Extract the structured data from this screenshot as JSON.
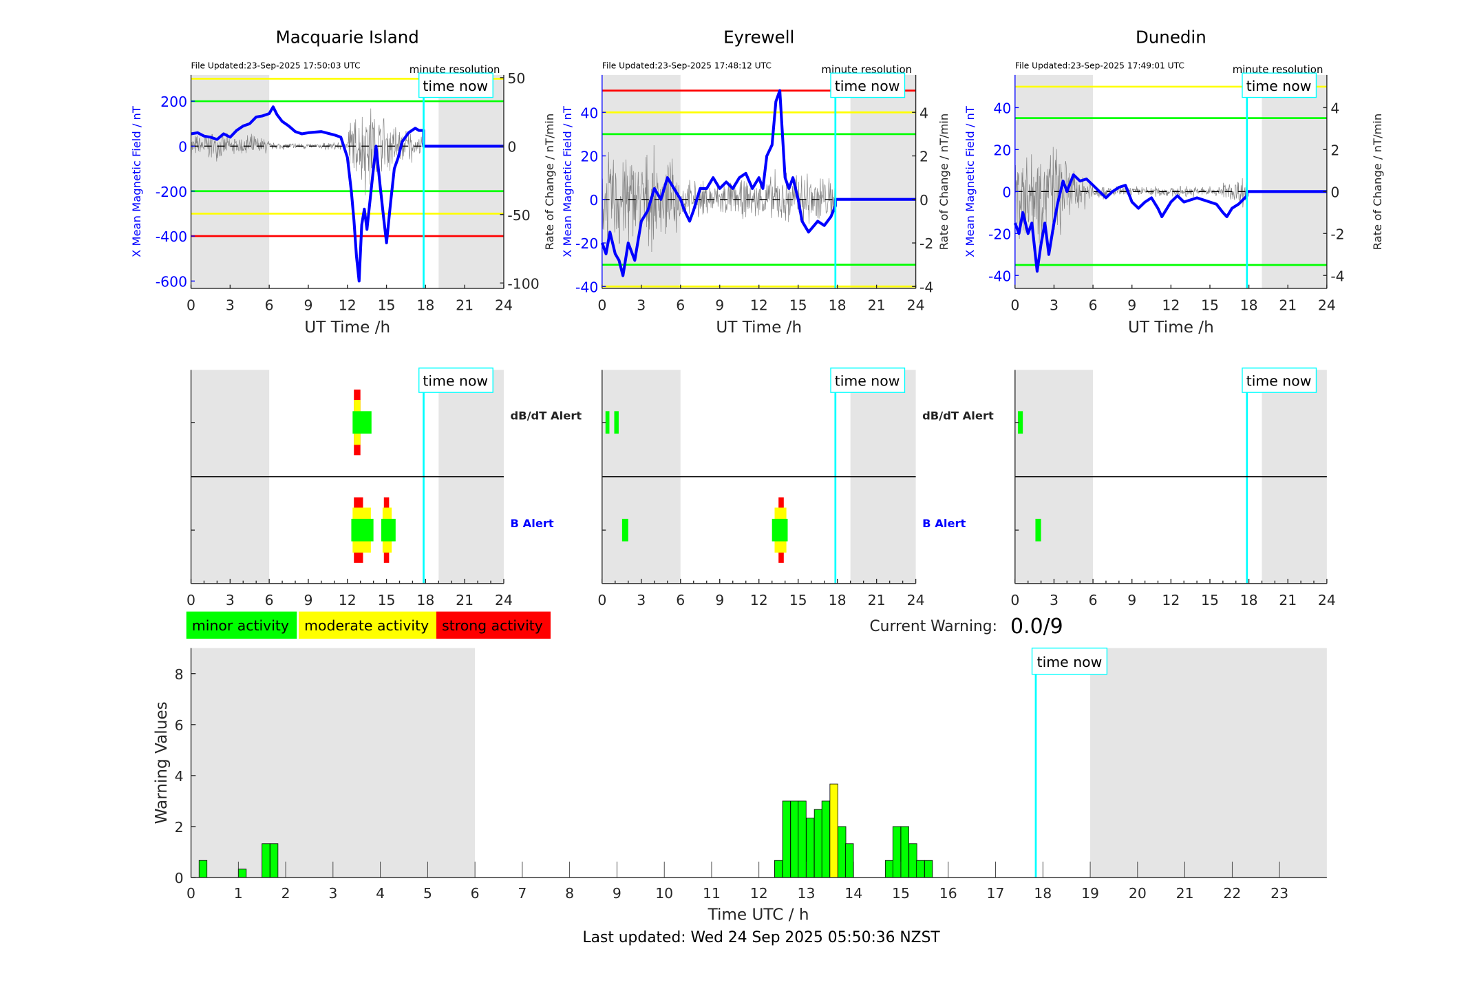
{
  "time_now_h": 17.85,
  "night_spans": [
    [
      0,
      6
    ],
    [
      19,
      24
    ]
  ],
  "colors": {
    "field": "#0000ff",
    "rate": "#808080",
    "time_now": "#00ffff",
    "night": "#e5e5e5",
    "minor": "#00ff00",
    "moderate": "#ffff00",
    "strong": "#ff0000",
    "b_alert_label": "#0000ff"
  },
  "stations": [
    {
      "name": "Macquarie Island",
      "file_updated": "File Updated:23-Sep-2025 17:50:03 UTC",
      "resolution": "minute resolution",
      "time_now_label": "time now",
      "left_label": "X Mean Magnetic Field / nT",
      "right_label": "Rate of Change / nT/min",
      "x_label": "UT Time /h",
      "x_ticks": [
        0,
        3,
        6,
        9,
        12,
        15,
        18,
        21,
        24
      ],
      "left_ticks": [
        -600,
        -400,
        -200,
        0,
        200
      ],
      "left_ylim": [
        -633,
        317
      ],
      "right_ticks": [
        -100,
        -50,
        0,
        50
      ],
      "right_ylim": [
        -104,
        52
      ],
      "thresholds": [
        {
          "value": 300,
          "color": "#ffff00"
        },
        {
          "value": 200,
          "color": "#00ff00"
        },
        {
          "value": -200,
          "color": "#00ff00"
        },
        {
          "value": -300,
          "color": "#ffff00"
        },
        {
          "value": -400,
          "color": "#ff0000"
        }
      ],
      "field": [
        [
          0,
          55
        ],
        [
          0.5,
          60
        ],
        [
          1,
          45
        ],
        [
          1.5,
          40
        ],
        [
          2,
          30
        ],
        [
          2.5,
          55
        ],
        [
          3,
          40
        ],
        [
          3.5,
          70
        ],
        [
          4,
          90
        ],
        [
          4.5,
          100
        ],
        [
          5,
          130
        ],
        [
          5.5,
          135
        ],
        [
          6,
          145
        ],
        [
          6.3,
          175
        ],
        [
          6.6,
          140
        ],
        [
          7,
          110
        ],
        [
          7.5,
          90
        ],
        [
          8,
          65
        ],
        [
          8.5,
          55
        ],
        [
          9,
          60
        ],
        [
          10,
          65
        ],
        [
          11,
          50
        ],
        [
          11.5,
          40
        ],
        [
          12,
          -50
        ],
        [
          12.3,
          -200
        ],
        [
          12.5,
          -330
        ],
        [
          12.7,
          -490
        ],
        [
          12.9,
          -600
        ],
        [
          13.1,
          -350
        ],
        [
          13.3,
          -280
        ],
        [
          13.5,
          -370
        ],
        [
          13.7,
          -260
        ],
        [
          14,
          -100
        ],
        [
          14.2,
          0
        ],
        [
          14.5,
          -170
        ],
        [
          14.8,
          -330
        ],
        [
          15,
          -430
        ],
        [
          15.3,
          -260
        ],
        [
          15.6,
          -100
        ],
        [
          15.9,
          -50
        ],
        [
          16.2,
          20
        ],
        [
          16.7,
          60
        ],
        [
          17.2,
          80
        ],
        [
          17.5,
          70
        ],
        [
          17.85,
          70
        ],
        [
          17.85,
          0
        ],
        [
          24,
          0
        ]
      ],
      "rate_envelope": [
        10,
        12,
        10,
        8,
        10,
        8,
        3,
        3,
        3,
        2,
        3,
        4,
        25,
        40,
        28,
        22,
        15,
        8
      ],
      "alert_labels": {
        "dbdt": "dB/dT Alert",
        "b": "B Alert"
      },
      "alerts": {
        "dbdt": [
          {
            "start": 12.5,
            "end": 13.0,
            "level": 3
          },
          {
            "start": 12.5,
            "end": 13.0,
            "level": 2
          },
          {
            "start": 12.4,
            "end": 13.85,
            "level": 1
          }
        ],
        "b": [
          {
            "start": 12.5,
            "end": 13.2,
            "level": 3
          },
          {
            "start": 12.4,
            "end": 13.8,
            "level": 2
          },
          {
            "start": 12.3,
            "end": 14.0,
            "level": 1
          },
          {
            "start": 14.8,
            "end": 15.2,
            "level": 3
          },
          {
            "start": 14.7,
            "end": 15.4,
            "level": 2
          },
          {
            "start": 14.6,
            "end": 15.7,
            "level": 1
          }
        ]
      }
    },
    {
      "name": "Eyrewell",
      "file_updated": "File Updated:23-Sep-2025 17:48:12 UTC",
      "resolution": "minute resolution",
      "time_now_label": "time now",
      "left_label": "X Mean Magnetic Field / nT",
      "right_label": "Rate of Change / nT/min",
      "x_label": "UT Time /h",
      "x_ticks": [
        0,
        3,
        6,
        9,
        12,
        15,
        18,
        21,
        24
      ],
      "left_ticks": [
        -40,
        -20,
        0,
        20,
        40
      ],
      "left_ylim": [
        -40.9,
        57.2
      ],
      "right_ticks": [
        -4,
        -2,
        0,
        2,
        4
      ],
      "right_ylim": [
        -4.09,
        5.72
      ],
      "thresholds": [
        {
          "value": 50,
          "color": "#ff0000"
        },
        {
          "value": 40,
          "color": "#ffff00"
        },
        {
          "value": 30,
          "color": "#00ff00"
        },
        {
          "value": -30,
          "color": "#00ff00"
        },
        {
          "value": -40,
          "color": "#ffff00"
        }
      ],
      "field": [
        [
          0,
          -20
        ],
        [
          0.3,
          -25
        ],
        [
          0.6,
          -15
        ],
        [
          1,
          -25
        ],
        [
          1.3,
          -28
        ],
        [
          1.6,
          -35
        ],
        [
          2,
          -20
        ],
        [
          2.5,
          -28
        ],
        [
          3,
          -10
        ],
        [
          3.5,
          -5
        ],
        [
          4,
          5
        ],
        [
          4.5,
          0
        ],
        [
          5,
          10
        ],
        [
          5.5,
          5
        ],
        [
          6,
          0
        ],
        [
          6.3,
          -5
        ],
        [
          6.7,
          -10
        ],
        [
          7,
          -5
        ],
        [
          7.5,
          5
        ],
        [
          8,
          5
        ],
        [
          8.5,
          10
        ],
        [
          9,
          5
        ],
        [
          9.5,
          8
        ],
        [
          10,
          5
        ],
        [
          10.5,
          10
        ],
        [
          11,
          12
        ],
        [
          11.5,
          5
        ],
        [
          12,
          10
        ],
        [
          12.3,
          5
        ],
        [
          12.6,
          20
        ],
        [
          13,
          25
        ],
        [
          13.3,
          45
        ],
        [
          13.6,
          50
        ],
        [
          13.8,
          30
        ],
        [
          14,
          10
        ],
        [
          14.3,
          5
        ],
        [
          14.6,
          10
        ],
        [
          15,
          0
        ],
        [
          15.3,
          -10
        ],
        [
          15.8,
          -15
        ],
        [
          16.5,
          -10
        ],
        [
          17,
          -12
        ],
        [
          17.5,
          -8
        ],
        [
          17.85,
          -3
        ],
        [
          17.85,
          0
        ],
        [
          24,
          0
        ]
      ],
      "rate_envelope": [
        2.5,
        3,
        2.5,
        2.5,
        2,
        2,
        1,
        1,
        1,
        1,
        1,
        1,
        1.2,
        1.5,
        1.5,
        1.8,
        1.5,
        1.2
      ],
      "alert_labels": {
        "dbdt": "dB/dT Alert",
        "b": "B Alert"
      },
      "alerts": {
        "dbdt": [
          {
            "start": 0.26,
            "end": 0.56,
            "level": 1
          },
          {
            "start": 0.93,
            "end": 1.27,
            "level": 1
          }
        ],
        "b": [
          {
            "start": 1.53,
            "end": 2.0,
            "level": 1
          },
          {
            "start": 13.5,
            "end": 13.9,
            "level": 3
          },
          {
            "start": 13.2,
            "end": 14.1,
            "level": 2
          },
          {
            "start": 13.0,
            "end": 14.2,
            "level": 1
          }
        ]
      }
    },
    {
      "name": "Dunedin",
      "file_updated": "File Updated:23-Sep-2025 17:49:01 UTC",
      "resolution": "minute resolution",
      "time_now_label": "time now",
      "left_label": "X Mean Magnetic Field / nT",
      "right_label": "Rate of Change / nT/min",
      "x_label": "UT Time /h",
      "x_ticks": [
        0,
        3,
        6,
        9,
        12,
        15,
        18,
        21,
        24
      ],
      "left_ticks": [
        -40,
        -20,
        0,
        20,
        40
      ],
      "left_ylim": [
        -46.2,
        55.6
      ],
      "right_ticks": [
        -4,
        -2,
        0,
        2,
        4
      ],
      "right_ylim": [
        -4.62,
        5.56
      ],
      "thresholds": [
        {
          "value": 50,
          "color": "#ffff00"
        },
        {
          "value": 35,
          "color": "#00ff00"
        },
        {
          "value": -35,
          "color": "#00ff00"
        }
      ],
      "field": [
        [
          0,
          -15
        ],
        [
          0.3,
          -20
        ],
        [
          0.6,
          -10
        ],
        [
          1,
          -20
        ],
        [
          1.3,
          -15
        ],
        [
          1.7,
          -38
        ],
        [
          2,
          -25
        ],
        [
          2.3,
          -15
        ],
        [
          2.6,
          -30
        ],
        [
          3,
          -15
        ],
        [
          3.3,
          -5
        ],
        [
          3.7,
          5
        ],
        [
          4,
          0
        ],
        [
          4.5,
          8
        ],
        [
          5,
          5
        ],
        [
          5.5,
          6
        ],
        [
          6,
          3
        ],
        [
          6.5,
          0
        ],
        [
          7,
          -3
        ],
        [
          7.5,
          0
        ],
        [
          8,
          2
        ],
        [
          8.5,
          3
        ],
        [
          9,
          -5
        ],
        [
          9.5,
          -8
        ],
        [
          10,
          -5
        ],
        [
          10.5,
          -3
        ],
        [
          11,
          -8
        ],
        [
          11.3,
          -12
        ],
        [
          12,
          -5
        ],
        [
          12.5,
          -2
        ],
        [
          13,
          -5
        ],
        [
          14,
          -3
        ],
        [
          15,
          -5
        ],
        [
          15.5,
          -6
        ],
        [
          16,
          -10
        ],
        [
          16.3,
          -12
        ],
        [
          16.7,
          -8
        ],
        [
          17.2,
          -6
        ],
        [
          17.85,
          -2
        ],
        [
          17.85,
          0
        ],
        [
          24,
          0
        ]
      ],
      "rate_envelope": [
        3,
        3,
        2.5,
        2.5,
        1.2,
        1,
        0.4,
        0.3,
        0.3,
        0.3,
        0.3,
        0.3,
        0.3,
        0.3,
        0.3,
        0.3,
        0.6,
        0.9
      ],
      "alert_labels": {
        "dbdt": "",
        "b": ""
      },
      "alerts": {
        "dbdt": [
          {
            "start": 0.22,
            "end": 0.6,
            "level": 1
          }
        ],
        "b": [
          {
            "start": 1.57,
            "end": 2.0,
            "level": 1
          }
        ]
      }
    }
  ],
  "legend": [
    {
      "label": "minor activity",
      "color": "#00ff00"
    },
    {
      "label": "moderate activity",
      "color": "#ffff00"
    },
    {
      "label": "strong activity",
      "color": "#ff0000"
    }
  ],
  "current_warning": {
    "label": "Current Warning:",
    "value": "0.0/9"
  },
  "chart_data": {
    "type": "bar",
    "xlabel": "Time UTC / h",
    "ylabel": "Warning Values",
    "xlim": [
      0,
      24
    ],
    "ylim": [
      0,
      9
    ],
    "x_ticks": [
      0,
      1,
      2,
      3,
      4,
      5,
      6,
      7,
      8,
      9,
      10,
      11,
      12,
      13,
      14,
      15,
      16,
      17,
      18,
      19,
      20,
      21,
      22,
      23
    ],
    "y_ticks": [
      0,
      2,
      4,
      6,
      8
    ],
    "bar_width_h": 0.1667,
    "bars": [
      {
        "x": 0.17,
        "value": 0.67,
        "level": "minor"
      },
      {
        "x": 1.0,
        "value": 0.33,
        "level": "minor"
      },
      {
        "x": 1.5,
        "value": 1.33,
        "level": "minor"
      },
      {
        "x": 1.67,
        "value": 1.33,
        "level": "minor"
      },
      {
        "x": 12.33,
        "value": 0.67,
        "level": "minor"
      },
      {
        "x": 12.5,
        "value": 3,
        "level": "minor"
      },
      {
        "x": 12.67,
        "value": 3,
        "level": "minor"
      },
      {
        "x": 12.83,
        "value": 3,
        "level": "minor"
      },
      {
        "x": 13.0,
        "value": 2.33,
        "level": "minor"
      },
      {
        "x": 13.17,
        "value": 2.67,
        "level": "minor"
      },
      {
        "x": 13.33,
        "value": 3,
        "level": "minor"
      },
      {
        "x": 13.5,
        "value": 3.67,
        "level": "moderate"
      },
      {
        "x": 13.67,
        "value": 2,
        "level": "minor"
      },
      {
        "x": 13.83,
        "value": 1.33,
        "level": "minor"
      },
      {
        "x": 14.67,
        "value": 0.67,
        "level": "minor"
      },
      {
        "x": 14.83,
        "value": 2,
        "level": "minor"
      },
      {
        "x": 15.0,
        "value": 2,
        "level": "minor"
      },
      {
        "x": 15.17,
        "value": 1.33,
        "level": "minor"
      },
      {
        "x": 15.33,
        "value": 0.67,
        "level": "minor"
      },
      {
        "x": 15.5,
        "value": 0.67,
        "level": "minor"
      }
    ],
    "time_now_label": "time now"
  },
  "footer": "Last updated: Wed 24 Sep 2025 05:50:36 NZST"
}
